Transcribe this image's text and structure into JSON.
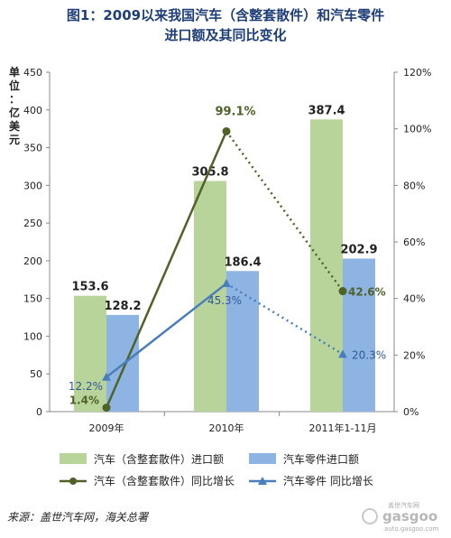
{
  "title": {
    "line1": "图1：2009以来我国汽车（含整套散件）和汽车零件",
    "line2": "进口额及其同比变化"
  },
  "chart_data": {
    "type": "bar",
    "categories": [
      "2009年",
      "2010年",
      "2011年1-11月"
    ],
    "y_left": {
      "label": "单位：亿美元",
      "min": 0,
      "max": 450,
      "ticks": [
        0,
        50,
        100,
        150,
        200,
        250,
        300,
        350,
        400,
        450
      ]
    },
    "y_right": {
      "min": 0,
      "max": 120,
      "ticks": [
        "0%",
        "20%",
        "40%",
        "60%",
        "80%",
        "100%",
        "120%"
      ]
    },
    "bars": [
      {
        "name": "汽车（含整套散件）进口额",
        "color": "#b8d49a",
        "values": [
          153.6,
          305.8,
          387.4
        ],
        "labels": [
          "153.6",
          "305.8",
          "387.4"
        ]
      },
      {
        "name": "汽车零件进口额",
        "color": "#8eb4e3",
        "values": [
          128.2,
          186.4,
          202.9
        ],
        "labels": [
          "128.2",
          "186.4",
          "202.9"
        ]
      }
    ],
    "lines": [
      {
        "name": "汽车（含整套散件）同比增长",
        "color": "#4f6228",
        "marker": "circle",
        "values": [
          1.4,
          99.1,
          42.6
        ],
        "labels": [
          "1.4%",
          "99.1%",
          "42.6%"
        ]
      },
      {
        "name": "汽车零件 同比增长",
        "color": "#4a7ebb",
        "marker": "triangle",
        "values": [
          12.2,
          45.3,
          20.3
        ],
        "labels": [
          "12.2%",
          "45.3%",
          "20.3%"
        ]
      }
    ],
    "grid": false,
    "legend_position": "bottom"
  },
  "source": "来源：盖世汽车网，海关总署",
  "watermark": {
    "brand": "gasgoo",
    "sub1": "盖世汽车网",
    "sub2": "auto.gasgoo.com"
  }
}
